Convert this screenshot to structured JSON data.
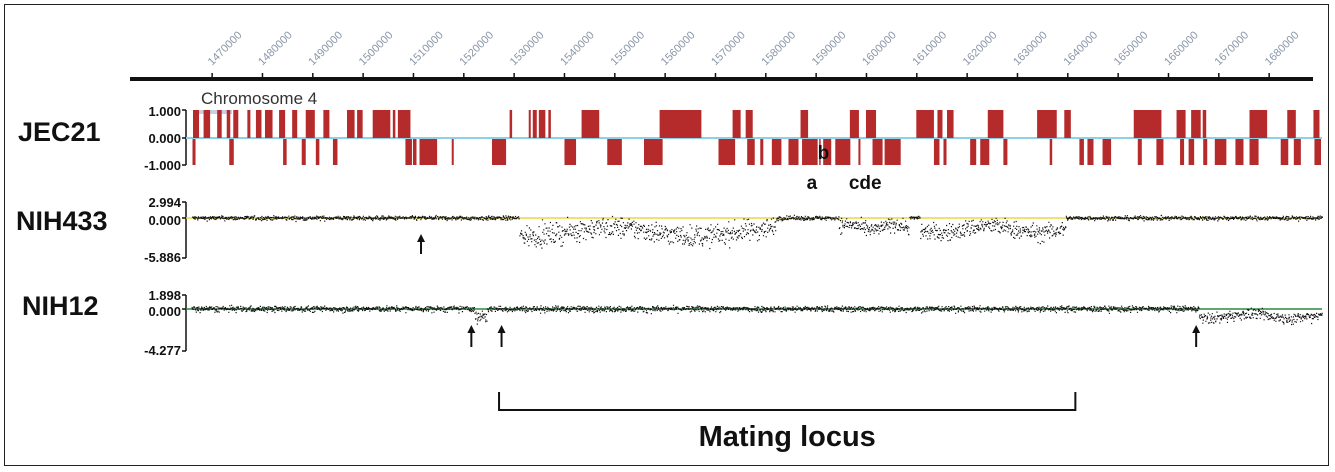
{
  "chart_data": {
    "type": "scatter",
    "x_axis": {
      "ticks": [
        1470000,
        1480000,
        1490000,
        1500000,
        1510000,
        1520000,
        1530000,
        1540000,
        1550000,
        1560000,
        1570000,
        1580000,
        1590000,
        1600000,
        1610000,
        1620000,
        1630000,
        1640000,
        1650000,
        1660000,
        1670000,
        1680000
      ],
      "tick_labels": [
        "1470000",
        "1480000",
        "1490000",
        "1500000",
        "1510000",
        "1520000",
        "1530000",
        "1540000",
        "1550000",
        "1560000",
        "1570000",
        "1580000",
        "1590000",
        "1600000",
        "1610000",
        "1620000",
        "1630000",
        "1640000",
        "1650000",
        "1660000",
        "1670000",
        "1680000"
      ],
      "range": [
        1466000,
        1690500
      ]
    },
    "tracks": [
      {
        "name": "JEC21",
        "subtitle": "Chromosome 4",
        "type": "gene-strand",
        "y_ticks": [
          "1.000",
          "0.000",
          "-1.000"
        ],
        "ylim": [
          -1,
          1
        ],
        "color": "#b52b2b",
        "baseline_color": "#8fd0e6",
        "plus_genes": [
          [
            1466200,
            1467400
          ],
          [
            1468300,
            1469600
          ],
          [
            1471000,
            1471900
          ],
          [
            1472900,
            1473600
          ],
          [
            1474200,
            1475200
          ],
          [
            1477000,
            1477600
          ],
          [
            1478700,
            1479800
          ],
          [
            1480500,
            1482000
          ],
          [
            1483300,
            1484500
          ],
          [
            1485900,
            1486900
          ],
          [
            1488600,
            1490400
          ],
          [
            1492100,
            1493300
          ],
          [
            1496800,
            1498300
          ],
          [
            1498800,
            1499900
          ],
          [
            1501900,
            1505400
          ],
          [
            1505900,
            1506400
          ],
          [
            1506900,
            1509400
          ],
          [
            1529100,
            1529600
          ],
          [
            1532900,
            1533300
          ],
          [
            1533700,
            1534500
          ],
          [
            1534900,
            1536200
          ],
          [
            1536800,
            1537300
          ],
          [
            1543400,
            1546900
          ],
          [
            1558900,
            1567200
          ],
          [
            1573400,
            1575000
          ],
          [
            1576000,
            1577400
          ],
          [
            1586900,
            1588400
          ],
          [
            1596700,
            1598500
          ],
          [
            1599900,
            1601900
          ],
          [
            1609900,
            1613400
          ],
          [
            1614100,
            1615100
          ],
          [
            1616000,
            1617300
          ],
          [
            1624100,
            1627200
          ],
          [
            1633900,
            1637800
          ],
          [
            1639300,
            1640600
          ],
          [
            1653100,
            1658600
          ],
          [
            1661600,
            1663400
          ],
          [
            1664500,
            1666400
          ],
          [
            1666800,
            1667500
          ],
          [
            1676100,
            1679600
          ],
          [
            1683600,
            1685300
          ],
          [
            1688800,
            1690000
          ]
        ],
        "minus_genes": [
          [
            1466100,
            1466700
          ],
          [
            1473400,
            1474300
          ],
          [
            1484100,
            1484800
          ],
          [
            1487800,
            1488600
          ],
          [
            1490600,
            1491300
          ],
          [
            1494000,
            1494900
          ],
          [
            1508400,
            1509700
          ],
          [
            1509900,
            1510600
          ],
          [
            1511200,
            1514700
          ],
          [
            1517600,
            1518000
          ],
          [
            1525600,
            1528400
          ],
          [
            1540000,
            1542300
          ],
          [
            1548500,
            1551400
          ],
          [
            1555800,
            1559500
          ],
          [
            1570600,
            1573900
          ],
          [
            1576300,
            1577800
          ],
          [
            1578900,
            1579500
          ],
          [
            1581200,
            1583100
          ],
          [
            1584500,
            1586500
          ],
          [
            1587200,
            1590300
          ],
          [
            1590600,
            1590900
          ],
          [
            1591400,
            1593000
          ],
          [
            1593800,
            1596800
          ],
          [
            1598400,
            1598800
          ],
          [
            1601200,
            1603200
          ],
          [
            1603600,
            1606800
          ],
          [
            1613400,
            1614500
          ],
          [
            1615300,
            1615900
          ],
          [
            1620600,
            1621800
          ],
          [
            1622600,
            1624400
          ],
          [
            1627200,
            1628000
          ],
          [
            1636400,
            1636900
          ],
          [
            1642300,
            1643200
          ],
          [
            1643900,
            1645100
          ],
          [
            1646900,
            1648600
          ],
          [
            1653900,
            1654700
          ],
          [
            1657600,
            1659000
          ],
          [
            1662300,
            1663100
          ],
          [
            1664000,
            1665100
          ],
          [
            1666900,
            1667700
          ],
          [
            1669200,
            1671500
          ],
          [
            1673300,
            1674900
          ],
          [
            1676100,
            1677900
          ],
          [
            1682300,
            1683800
          ],
          [
            1684900,
            1686300
          ],
          [
            1689000,
            1690300
          ]
        ],
        "gene_labels": [
          {
            "text": "a",
            "x": 1588100,
            "row": "bottom"
          },
          {
            "text": "b",
            "x": 1590300,
            "row": "top"
          },
          {
            "text": "cde",
            "x": 1596500,
            "row": "bottom"
          }
        ]
      },
      {
        "name": "NIH433",
        "type": "log2-ratio",
        "y_ticks": [
          "2.994",
          "0.000",
          "-5.886"
        ],
        "ylim": [
          -5.886,
          2.994
        ],
        "baseline_color": "#e8d84a",
        "point_color": "#111111",
        "deleted_segments": [
          {
            "start": 1531000,
            "end": 1582000,
            "mean": -2.6
          },
          {
            "start": 1594500,
            "end": 1608500,
            "mean": -1.7
          },
          {
            "start": 1610500,
            "end": 1639500,
            "mean": -2.1
          }
        ],
        "arrows": [
          1511500
        ]
      },
      {
        "name": "NIH12",
        "type": "log2-ratio",
        "y_ticks": [
          "1.898",
          "0.000",
          "-4.277"
        ],
        "ylim": [
          -4.277,
          1.898
        ],
        "baseline_color": "#2f8a3f",
        "point_color": "#111111",
        "deleted_segments": [
          {
            "start": 1522000,
            "end": 1524500,
            "mean": -1.0
          },
          {
            "start": 1666000,
            "end": 1690500,
            "mean": -0.9
          }
        ],
        "arrows": [
          1521500,
          1527500,
          1665500
        ]
      }
    ],
    "annotations": [
      {
        "type": "bracket",
        "label": "Mating locus",
        "start": 1527000,
        "end": 1641500
      }
    ]
  }
}
